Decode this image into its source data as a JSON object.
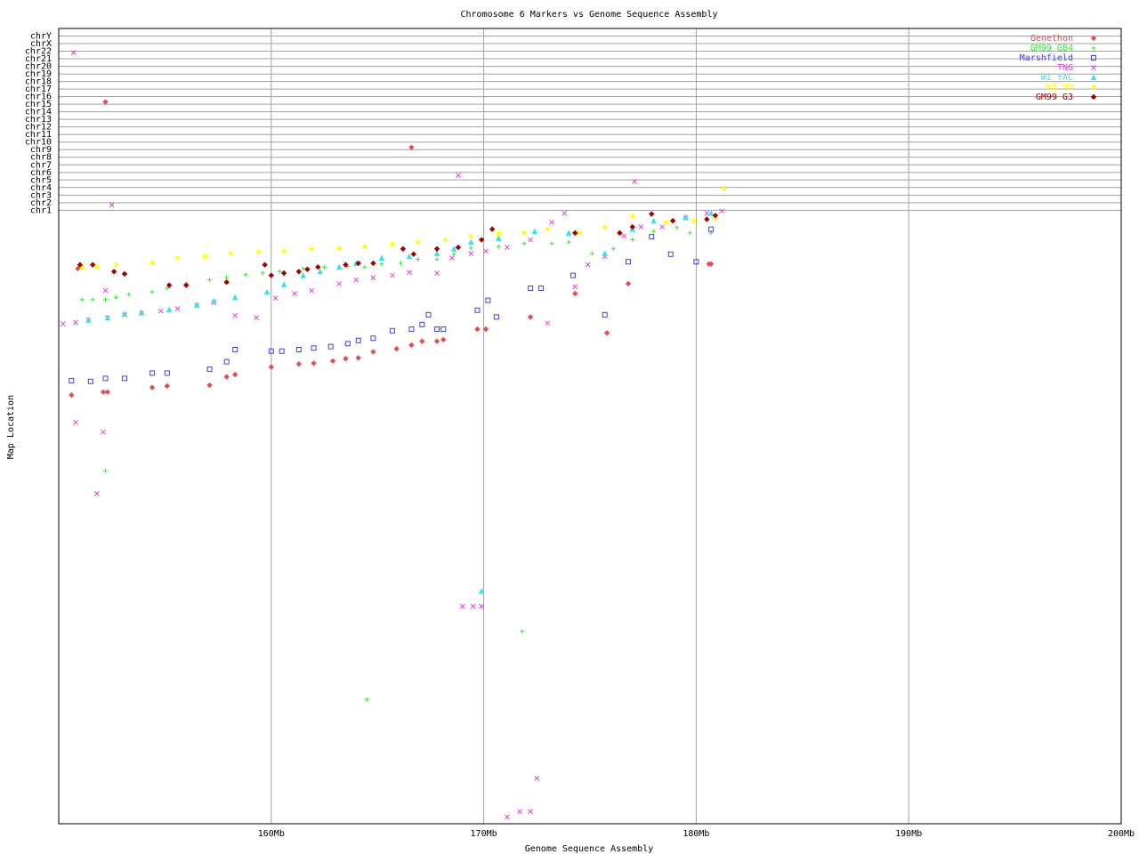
{
  "chart_data": {
    "type": "scatter",
    "title": "Chromosome 6 Markers vs Genome Sequence Assembly",
    "x_label": "Genome Sequence Assembly",
    "y_label": "Map Location",
    "xlim": [
      150,
      200
    ],
    "xticks": [
      {
        "value": 160,
        "label": "160Mb"
      },
      {
        "value": 170,
        "label": "170Mb"
      },
      {
        "value": 180,
        "label": "180Mb"
      },
      {
        "value": 190,
        "label": "190Mb"
      },
      {
        "value": 200,
        "label": "200Mb"
      }
    ],
    "ylim": [
      0,
      105
    ],
    "yticks": [
      {
        "value": 81,
        "label": "chr1"
      },
      {
        "value": 82,
        "label": "chr2"
      },
      {
        "value": 83,
        "label": "chr3"
      },
      {
        "value": 84,
        "label": "chr4"
      },
      {
        "value": 85,
        "label": "chr5"
      },
      {
        "value": 86,
        "label": "chr6"
      },
      {
        "value": 87,
        "label": "chr7"
      },
      {
        "value": 88,
        "label": "chr8"
      },
      {
        "value": 89,
        "label": "chr9"
      },
      {
        "value": 90,
        "label": "chr10"
      },
      {
        "value": 91,
        "label": "chr11"
      },
      {
        "value": 92,
        "label": "chr12"
      },
      {
        "value": 93,
        "label": "chr13"
      },
      {
        "value": 94,
        "label": "chr14"
      },
      {
        "value": 95,
        "label": "chr15"
      },
      {
        "value": 96,
        "label": "chr16"
      },
      {
        "value": 97,
        "label": "chr17"
      },
      {
        "value": 98,
        "label": "chr18"
      },
      {
        "value": 99,
        "label": "chr19"
      },
      {
        "value": 100,
        "label": "chr20"
      },
      {
        "value": 101,
        "label": "chr21"
      },
      {
        "value": 102,
        "label": "chr22"
      },
      {
        "value": 103,
        "label": "chrX"
      },
      {
        "value": 104,
        "label": "chrY"
      }
    ],
    "grid": true,
    "legend": "upper right",
    "series": [
      {
        "name": "Genethon",
        "color": "#e05050",
        "marker": "diamond",
        "x": [
          150.6,
          152.3,
          152.1,
          154.4,
          155.1,
          157.1,
          157.9,
          158.3,
          160.0,
          161.3,
          162.0,
          162.9,
          163.5,
          164.1,
          164.8,
          165.9,
          166.6,
          167.1,
          167.8,
          168.1,
          169.7,
          170.1,
          172.2,
          174.3,
          175.8,
          176.8,
          180.6,
          180.7,
          152.2,
          166.6,
          150.9
        ],
        "y": [
          56.6,
          57.0,
          57.0,
          57.6,
          57.8,
          57.9,
          59.0,
          59.3,
          60.3,
          60.7,
          60.8,
          61.1,
          61.4,
          61.5,
          62.3,
          62.7,
          63.2,
          63.7,
          63.7,
          63.9,
          65.3,
          65.3,
          66.9,
          70.0,
          64.8,
          71.3,
          73.9,
          73.9,
          95.3,
          89.3,
          73.3
        ]
      },
      {
        "name": "GM99 GB4",
        "color": "#40e040",
        "marker": "plus",
        "x": [
          151.1,
          151.6,
          152.2,
          152.7,
          153.3,
          154.4,
          155.1,
          156.0,
          157.1,
          157.9,
          158.8,
          159.6,
          160.4,
          161.5,
          162.5,
          163.6,
          164.4,
          165.2,
          166.1,
          166.9,
          167.8,
          168.6,
          169.4,
          170.7,
          171.9,
          173.2,
          174.0,
          175.1,
          176.1,
          177.0,
          178.0,
          179.1,
          179.7,
          180.7,
          152.2,
          164.5,
          171.8
        ],
        "y": [
          69.2,
          69.2,
          69.2,
          69.5,
          69.9,
          70.2,
          70.7,
          71.3,
          71.8,
          72.1,
          72.5,
          72.7,
          72.9,
          73.3,
          73.5,
          73.6,
          73.5,
          73.9,
          74.0,
          74.5,
          74.5,
          75.2,
          76.0,
          76.2,
          76.6,
          76.6,
          76.8,
          75.3,
          75.9,
          77.1,
          78.2,
          78.7,
          78.0,
          78.0,
          46.6,
          16.4,
          25.4
        ]
      },
      {
        "name": "Marshfield",
        "color": "#4040e0",
        "marker": "square",
        "x": [
          150.6,
          151.5,
          152.2,
          153.1,
          154.4,
          155.1,
          157.1,
          157.9,
          158.3,
          160.0,
          160.5,
          161.3,
          162.0,
          162.8,
          163.6,
          164.1,
          164.8,
          165.7,
          166.6,
          167.1,
          167.8,
          168.1,
          167.4,
          169.7,
          170.2,
          170.6,
          172.2,
          172.7,
          174.2,
          175.7,
          176.8,
          177.9,
          178.8,
          180.0,
          180.7
        ],
        "y": [
          58.5,
          58.4,
          58.8,
          58.8,
          59.5,
          59.5,
          60.0,
          61.0,
          62.6,
          62.4,
          62.4,
          62.6,
          62.8,
          63.0,
          63.4,
          63.8,
          64.1,
          65.1,
          65.3,
          65.9,
          65.3,
          65.3,
          67.2,
          67.8,
          69.1,
          66.9,
          70.7,
          70.7,
          72.4,
          67.2,
          74.2,
          77.5,
          75.2,
          74.2,
          78.5
        ]
      },
      {
        "name": "TNG",
        "color": "#e040e0",
        "marker": "cross",
        "x": [
          150.2,
          150.8,
          151.4,
          152.3,
          153.1,
          153.9,
          154.8,
          155.6,
          156.5,
          157.3,
          158.3,
          159.3,
          160.2,
          161.1,
          161.9,
          163.2,
          164.0,
          164.8,
          165.7,
          166.5,
          167.8,
          168.5,
          169.4,
          170.1,
          171.1,
          172.2,
          173.2,
          173.8,
          174.3,
          174.9,
          175.7,
          176.6,
          177.4,
          178.4,
          179.5,
          180.5,
          181.2,
          150.7,
          152.5,
          168.8,
          177.1,
          150.8,
          152.1,
          151.8,
          169.0,
          169.5,
          169.9,
          171.1,
          171.7,
          172.2,
          172.5,
          173.0,
          152.2
        ],
        "y": [
          66.0,
          66.2,
          66.5,
          66.8,
          67.2,
          67.4,
          67.7,
          68.0,
          68.4,
          68.8,
          67.1,
          66.8,
          69.4,
          70.0,
          70.4,
          71.3,
          71.8,
          72.1,
          72.4,
          72.8,
          72.7,
          74.7,
          75.3,
          75.6,
          76.1,
          77.1,
          79.4,
          80.6,
          70.9,
          73.8,
          74.9,
          77.6,
          78.8,
          78.8,
          80.0,
          80.6,
          80.9,
          101.8,
          81.7,
          85.6,
          84.8,
          53.0,
          51.7,
          43.6,
          28.7,
          28.7,
          28.7,
          0.9,
          1.6,
          1.6,
          6.0,
          66.1,
          70.4
        ]
      },
      {
        "name": "WI YAC",
        "color": "#40e0e0",
        "marker": "triangle",
        "x": [
          151.4,
          152.3,
          153.1,
          153.9,
          155.2,
          156.5,
          157.3,
          158.3,
          159.8,
          160.6,
          161.5,
          162.3,
          163.2,
          164.0,
          165.2,
          166.5,
          167.8,
          168.6,
          169.4,
          170.7,
          172.4,
          174.0,
          175.7,
          177.0,
          178.0,
          179.5,
          180.7,
          169.9
        ],
        "y": [
          66.5,
          66.8,
          67.3,
          67.5,
          67.9,
          68.5,
          69.0,
          69.5,
          70.2,
          71.2,
          72.4,
          72.9,
          73.5,
          74.0,
          74.7,
          74.9,
          75.3,
          75.9,
          76.8,
          77.3,
          78.2,
          78.0,
          75.3,
          78.5,
          79.6,
          80.1,
          80.6,
          30.7
        ]
      },
      {
        "name": "WI RH",
        "color": "#ffff00",
        "marker": "star",
        "x": [
          151.1,
          151.8,
          152.7,
          154.4,
          155.6,
          156.9,
          158.1,
          159.4,
          160.6,
          161.9,
          163.2,
          164.4,
          165.7,
          166.9,
          168.2,
          169.4,
          170.7,
          171.9,
          173.0,
          174.5,
          175.7,
          177.0,
          178.6,
          179.9,
          180.9,
          181.3
        ],
        "y": [
          73.5,
          73.5,
          73.8,
          74.1,
          74.7,
          74.9,
          75.3,
          75.5,
          75.6,
          75.9,
          76.0,
          76.2,
          76.5,
          76.8,
          77.1,
          77.6,
          77.9,
          78.0,
          78.5,
          78.0,
          78.8,
          80.2,
          79.4,
          79.6,
          80.0,
          83.9
        ]
      },
      {
        "name": "GM99 G3",
        "color": "#a00000",
        "marker": "diamond",
        "x": [
          151.0,
          151.6,
          152.6,
          153.1,
          155.2,
          156.0,
          157.9,
          159.7,
          160.0,
          160.6,
          161.3,
          161.7,
          162.2,
          163.5,
          164.1,
          164.8,
          166.2,
          166.7,
          167.8,
          168.8,
          169.9,
          170.4,
          174.3,
          176.4,
          177.0,
          177.9,
          178.9,
          180.5,
          180.9
        ],
        "y": [
          73.8,
          73.8,
          72.9,
          72.6,
          71.1,
          71.1,
          71.5,
          73.8,
          72.4,
          72.7,
          72.9,
          73.2,
          73.5,
          73.8,
          74.0,
          74.0,
          75.9,
          75.2,
          75.9,
          76.1,
          77.1,
          78.5,
          78.0,
          78.0,
          78.8,
          80.5,
          79.6,
          79.8,
          80.3
        ]
      }
    ]
  }
}
